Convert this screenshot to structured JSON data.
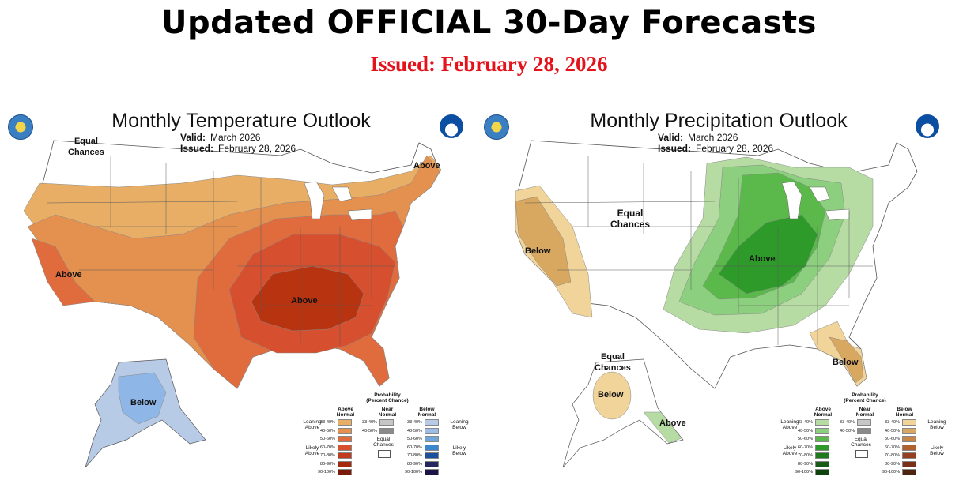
{
  "header": {
    "title": "Updated OFFICIAL 30-Day Forecasts",
    "issued": "Issued: February 28, 2026"
  },
  "temperature_panel": {
    "title": "Monthly Temperature Outlook",
    "valid_label": "Valid:",
    "valid_value": "March 2026",
    "issued_label": "Issued:",
    "issued_value": "February 28, 2026",
    "labels": {
      "equal_chances": [
        "Equal",
        "Chances"
      ],
      "above_ne": "Above",
      "above_sw": "Above",
      "above_se": "Above",
      "below_ak": "Below"
    },
    "colors": {
      "above_33_40": "#e8ae66",
      "above_40_50": "#e4904e",
      "above_50_60": "#e06c3e",
      "above_60_70": "#d6502f",
      "above_70_80": "#c23a1e",
      "below_33_40": "#a9c3e0",
      "below_40_50": "#8eb6e6"
    }
  },
  "precipitation_panel": {
    "title": "Monthly Precipitation Outlook",
    "valid_label": "Valid:",
    "valid_value": "March 2026",
    "issued_label": "Issued:",
    "issued_value": "February 28, 2026",
    "labels": {
      "equal_chances_mid": [
        "Equal",
        "Chances"
      ],
      "below_west": "Below",
      "above_mid": "Above",
      "below_fl": "Below",
      "equal_chances_ak": [
        "Equal",
        "Chances"
      ],
      "below_ak": "Below",
      "above_ak": "Above"
    },
    "colors": {
      "above_33_40": "#b6dca4",
      "above_40_50": "#8ccf7e",
      "above_50_60": "#5bb84a",
      "above_60_70": "#2e9a2a",
      "below_33_40": "#f0d49a",
      "below_40_50": "#d9a860"
    }
  },
  "legend": {
    "title": [
      "Probability",
      "(Percent Chance)"
    ],
    "col_headers": {
      "above": [
        "Above",
        "Normal"
      ],
      "near": [
        "Near",
        "Normal"
      ],
      "below": [
        "Below",
        "Normal"
      ]
    },
    "pct": [
      "33-40%",
      "40-50%",
      "50-60%",
      "60-70%",
      "70-80%",
      "80-90%",
      "90-100%"
    ],
    "near_pct": [
      "33-40%",
      "40-50%"
    ],
    "side": {
      "leaning_above": [
        "Leaning",
        "Above"
      ],
      "likely_above": [
        "Likely",
        "Above"
      ],
      "leaning_below": [
        "Leaning",
        "Below"
      ],
      "likely_below": [
        "Likely",
        "Below"
      ]
    },
    "equal_chances": [
      "Equal",
      "Chances"
    ],
    "temp_above_colors": [
      "#e8ae66",
      "#e4904e",
      "#e06c3e",
      "#d6502f",
      "#c23a1e",
      "#a5280f",
      "#7a1b0a"
    ],
    "temp_below_colors": [
      "#b7cbe6",
      "#9dbde6",
      "#6fa6dc",
      "#3a87cf",
      "#1c4f9c",
      "#24285e",
      "#1c1446"
    ],
    "precip_above_colors": [
      "#b6dca4",
      "#8ccf7e",
      "#5bb84a",
      "#2e9a2a",
      "#1e7a1c",
      "#195a18",
      "#10420e"
    ],
    "precip_below_colors": [
      "#f0d49a",
      "#d9a860",
      "#c88646",
      "#b0612e",
      "#944020",
      "#7a3018",
      "#4e2410"
    ],
    "near_colors": [
      "#c6c6c6",
      "#8a8a8a"
    ]
  }
}
